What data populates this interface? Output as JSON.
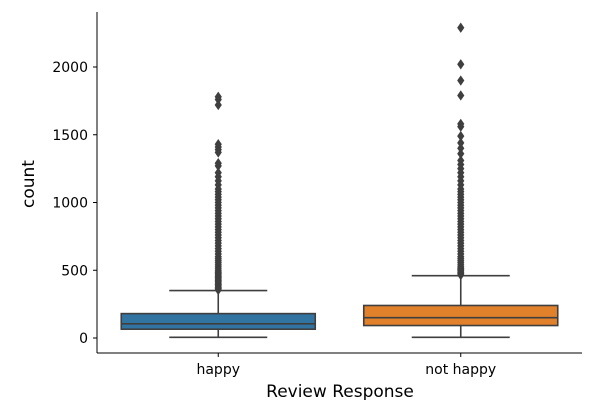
{
  "chart_data": {
    "type": "box",
    "title": "",
    "xlabel": "Review Response",
    "ylabel": "count",
    "categories": [
      "happy",
      "not happy"
    ],
    "ylim": [
      -115,
      2400
    ],
    "yticks": [
      0,
      500,
      1000,
      1500,
      2000
    ],
    "grid": false,
    "legend": "none",
    "boxes": [
      {
        "category": "happy",
        "color": "#3274a1",
        "whisker_low": 5,
        "q1": 65,
        "median": 105,
        "q3": 180,
        "whisker_high": 350,
        "outliers": [
          355,
          365,
          375,
          385,
          395,
          405,
          415,
          425,
          435,
          445,
          455,
          465,
          475,
          485,
          495,
          510,
          525,
          540,
          555,
          570,
          585,
          600,
          620,
          640,
          660,
          680,
          700,
          720,
          740,
          760,
          780,
          800,
          820,
          840,
          860,
          880,
          900,
          920,
          940,
          960,
          980,
          1000,
          1020,
          1040,
          1060,
          1080,
          1100,
          1130,
          1160,
          1190,
          1220,
          1270,
          1290,
          1370,
          1390,
          1410,
          1430,
          1720,
          1760,
          1780
        ]
      },
      {
        "category": "not happy",
        "color": "#e1812c",
        "whisker_low": 5,
        "q1": 92,
        "median": 150,
        "q3": 240,
        "whisker_high": 460,
        "outliers": [
          465,
          475,
          485,
          495,
          505,
          515,
          525,
          540,
          555,
          570,
          585,
          600,
          620,
          640,
          660,
          680,
          700,
          720,
          740,
          760,
          780,
          800,
          820,
          840,
          860,
          880,
          900,
          920,
          940,
          960,
          980,
          1000,
          1020,
          1040,
          1060,
          1080,
          1100,
          1130,
          1160,
          1190,
          1220,
          1250,
          1280,
          1310,
          1360,
          1400,
          1440,
          1490,
          1560,
          1580,
          1790,
          1900,
          2020,
          2290
        ]
      }
    ]
  }
}
